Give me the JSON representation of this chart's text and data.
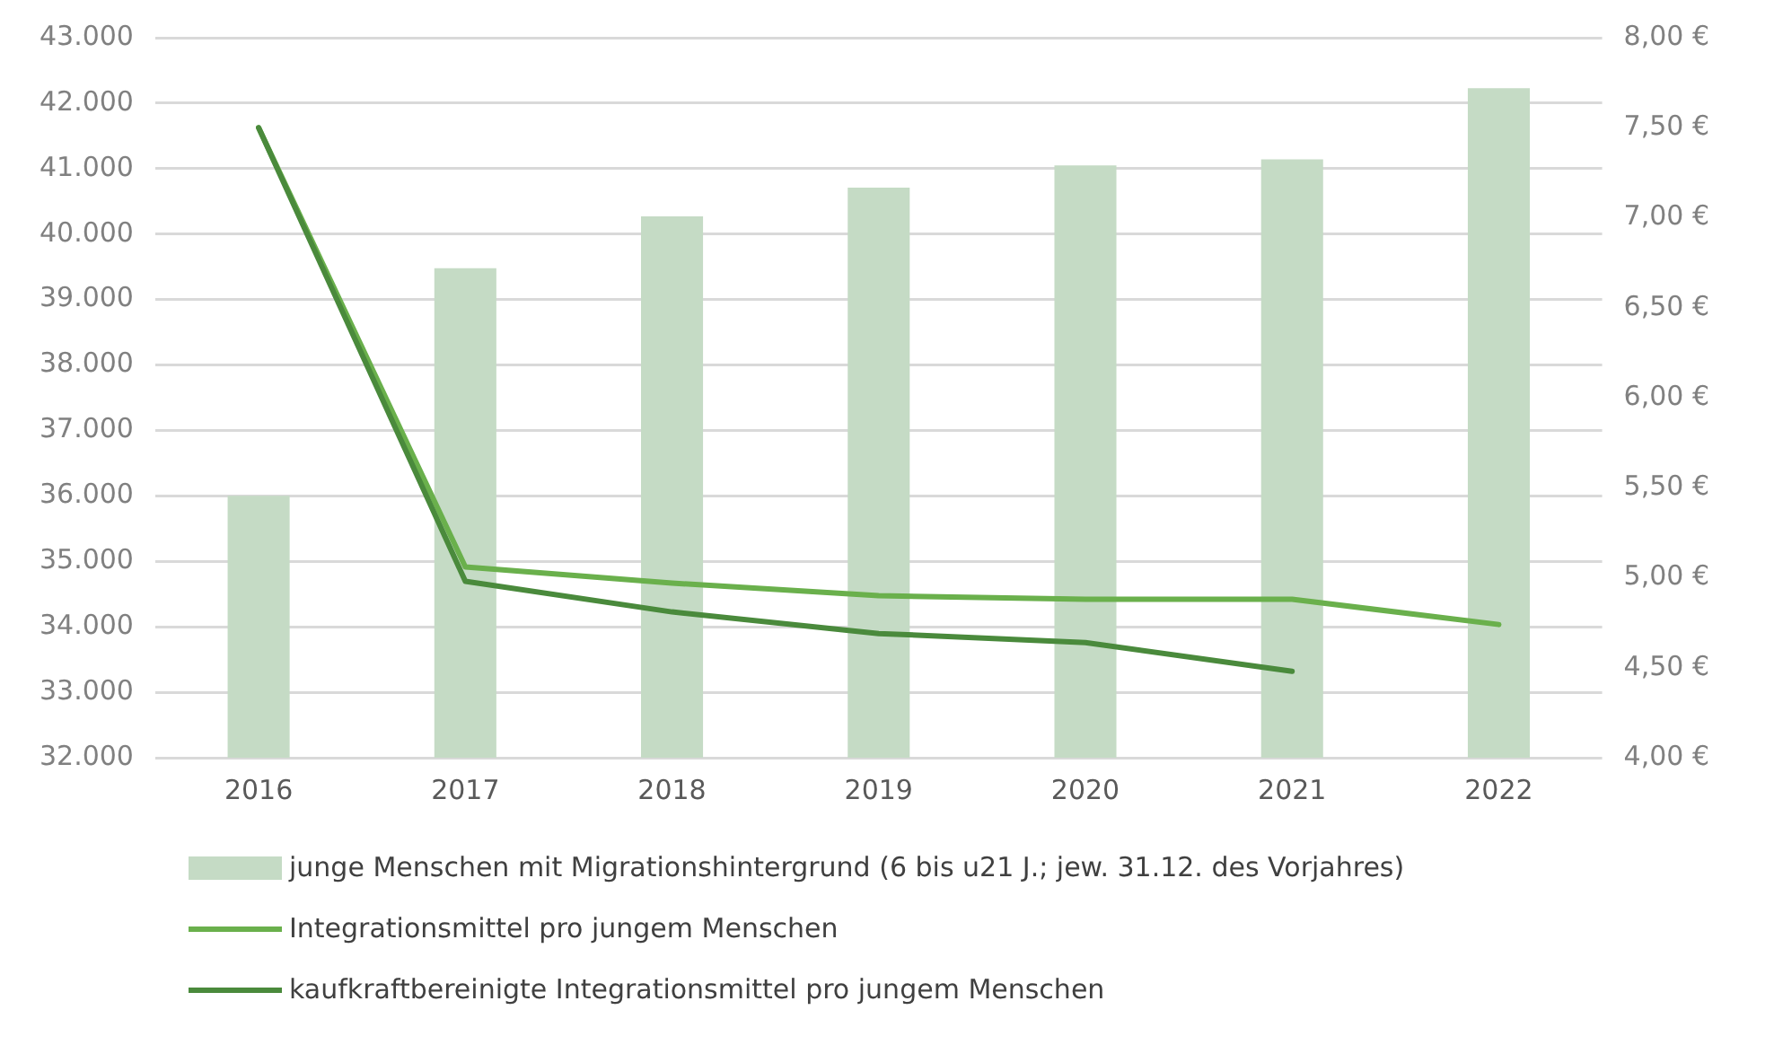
{
  "chart_data": {
    "type": "bar",
    "categories": [
      "2016",
      "2017",
      "2018",
      "2019",
      "2020",
      "2021",
      "2022"
    ],
    "series": [
      {
        "name": "junge Menschen mit Migrationshintergrund (6 bis u21 J.; jew. 31.12. des Vorjahres)",
        "color": "#c5dbc5",
        "values": [
          36000,
          39480,
          40270,
          40710,
          41050,
          41140,
          42230
        ]
      },
      {
        "name": "Integrationsmittel pro jungem Menschen",
        "type": "line",
        "axis": "y2",
        "color": "#6ab04c",
        "values": [
          7.5,
          5.06,
          4.97,
          4.9,
          4.88,
          4.88,
          4.74
        ]
      },
      {
        "name": "kaufkraftbereinigte Integrationsmittel pro jungem Menschen",
        "type": "line",
        "axis": "y2",
        "color": "#4a8a3c",
        "values": [
          7.5,
          4.98,
          4.81,
          4.69,
          4.64,
          4.48,
          null
        ]
      }
    ],
    "ylim": [
      32000,
      43000
    ],
    "yticks": [
      {
        "value": 32000,
        "label": "32.000"
      },
      {
        "value": 33000,
        "label": "33.000"
      },
      {
        "value": 34000,
        "label": "34.000"
      },
      {
        "value": 35000,
        "label": "35.000"
      },
      {
        "value": 36000,
        "label": "36.000"
      },
      {
        "value": 37000,
        "label": "37.000"
      },
      {
        "value": 38000,
        "label": "38.000"
      },
      {
        "value": 39000,
        "label": "39.000"
      },
      {
        "value": 40000,
        "label": "40.000"
      },
      {
        "value": 41000,
        "label": "41.000"
      },
      {
        "value": 42000,
        "label": "42.000"
      },
      {
        "value": 43000,
        "label": "43.000"
      }
    ],
    "y2lim": [
      4,
      8
    ],
    "y2ticks": [
      {
        "value": 4,
        "label": "4,00 €"
      },
      {
        "value": 4.5,
        "label": "4,50 €"
      },
      {
        "value": 5,
        "label": "5,00 €"
      },
      {
        "value": 5.5,
        "label": "5,50 €"
      },
      {
        "value": 6,
        "label": "6,00 €"
      },
      {
        "value": 6.5,
        "label": "6,50 €"
      },
      {
        "value": 7,
        "label": "7,00 €"
      },
      {
        "value": 7.5,
        "label": "7,50 €"
      },
      {
        "value": 8,
        "label": "8,00 €"
      }
    ],
    "grid": "y",
    "legend": "bottom",
    "marker": "none"
  }
}
